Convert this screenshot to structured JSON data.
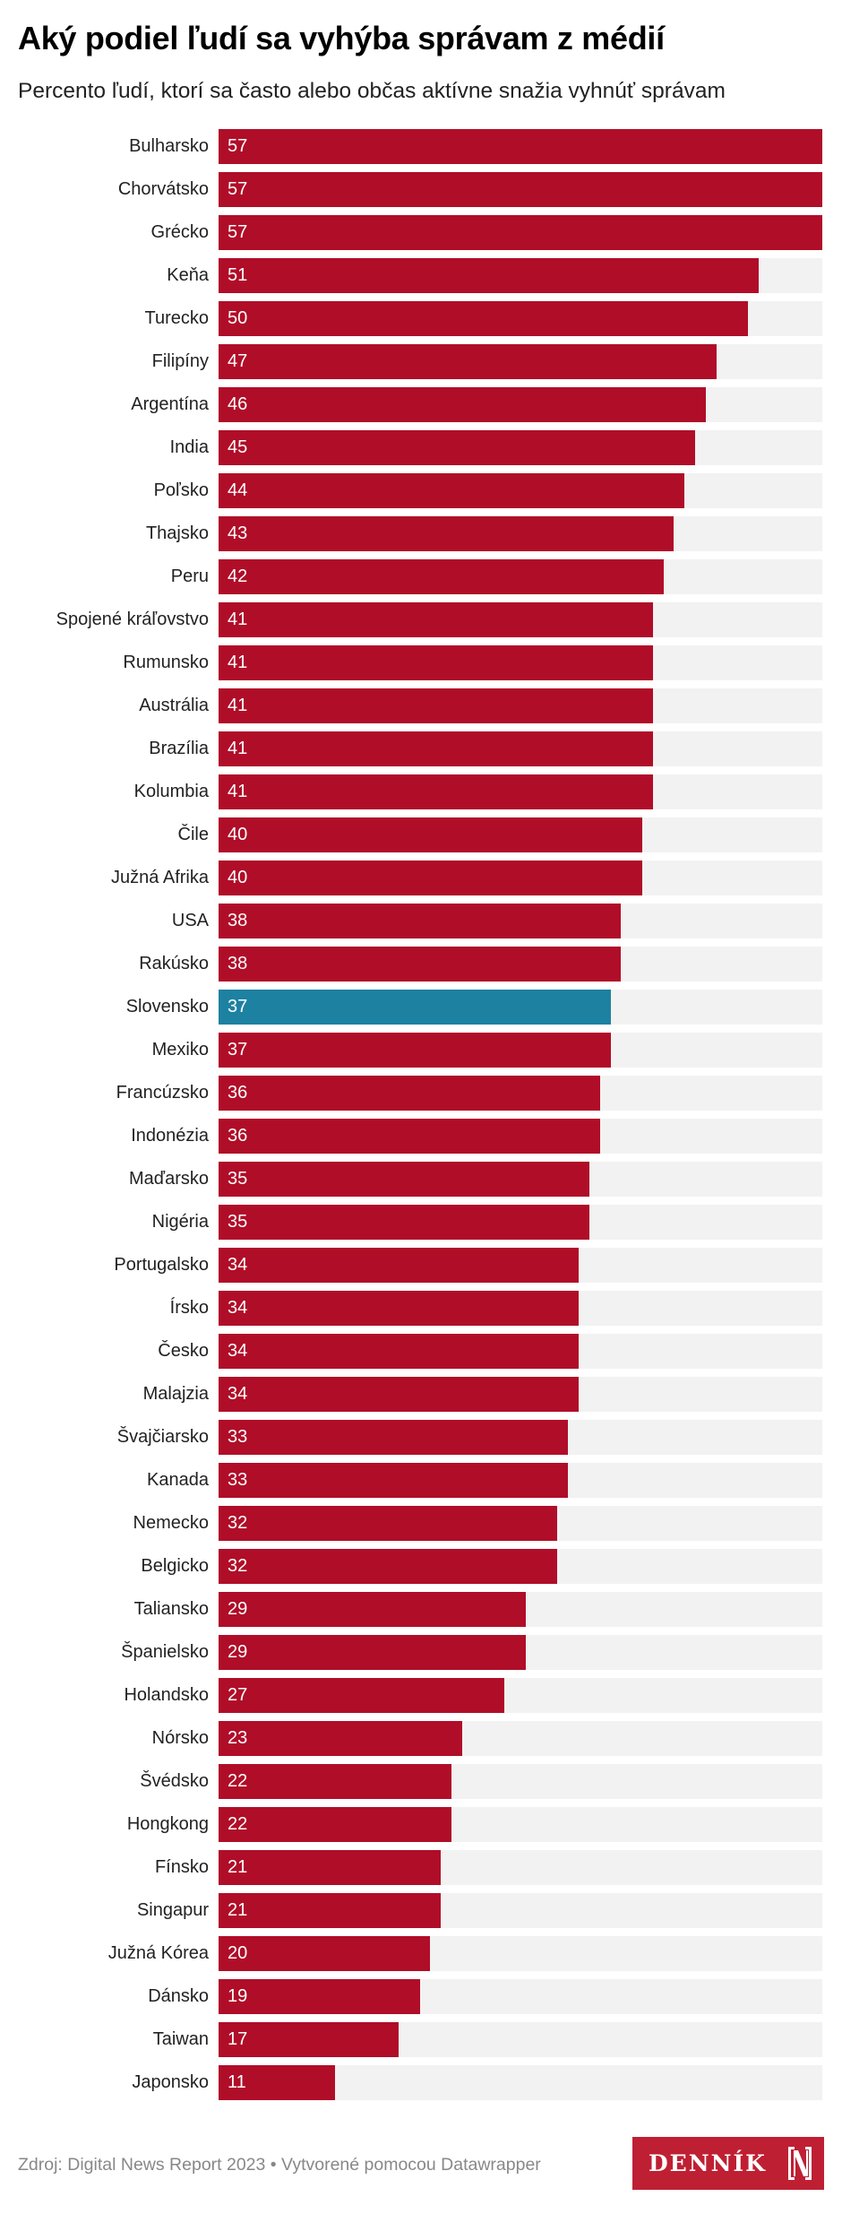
{
  "header": {
    "title": "Aký podiel ľudí sa vyhýba správam z médií",
    "subtitle": "Percento ľudí, ktorí sa často alebo občas aktívne snažia vyhnúť správam"
  },
  "footer": {
    "source": "Zdroj: Digital News Report 2023 • Vytvorené pomocou Datawrapper",
    "logo_text": "DENNÍK",
    "logo_mark": "N-logo-icon"
  },
  "colors": {
    "bar": "#b00d28",
    "highlight": "#1d81a2",
    "track": "#f2f2f2",
    "logo": "#bf1f33"
  },
  "chart_data": {
    "type": "bar",
    "orientation": "horizontal",
    "title": "Aký podiel ľudí sa vyhýba správam z médií",
    "subtitle": "Percento ľudí, ktorí sa často alebo občas aktívne snažia vyhnúť správam",
    "xlabel": "",
    "ylabel": "",
    "xlim": [
      0,
      57
    ],
    "grid": false,
    "legend": "none",
    "highlighted_category": "Slovensko",
    "categories": [
      "Bulharsko",
      "Chorvátsko",
      "Grécko",
      "Keňa",
      "Turecko",
      "Filipíny",
      "Argentína",
      "India",
      "Poľsko",
      "Thajsko",
      "Peru",
      "Spojené kráľovstvo",
      "Rumunsko",
      "Austrália",
      "Brazília",
      "Kolumbia",
      "Čile",
      "Južná Afrika",
      "USA",
      "Rakúsko",
      "Slovensko",
      "Mexiko",
      "Francúzsko",
      "Indonézia",
      "Maďarsko",
      "Nigéria",
      "Portugalsko",
      "Írsko",
      "Česko",
      "Malajzia",
      "Švajčiarsko",
      "Kanada",
      "Nemecko",
      "Belgicko",
      "Taliansko",
      "Španielsko",
      "Holandsko",
      "Nórsko",
      "Švédsko",
      "Hongkong",
      "Fínsko",
      "Singapur",
      "Južná Kórea",
      "Dánsko",
      "Taiwan",
      "Japonsko"
    ],
    "values": [
      57,
      57,
      57,
      51,
      50,
      47,
      46,
      45,
      44,
      43,
      42,
      41,
      41,
      41,
      41,
      41,
      40,
      40,
      38,
      38,
      37,
      37,
      36,
      36,
      35,
      35,
      34,
      34,
      34,
      34,
      33,
      33,
      32,
      32,
      29,
      29,
      27,
      23,
      22,
      22,
      21,
      21,
      20,
      19,
      17,
      11
    ]
  }
}
